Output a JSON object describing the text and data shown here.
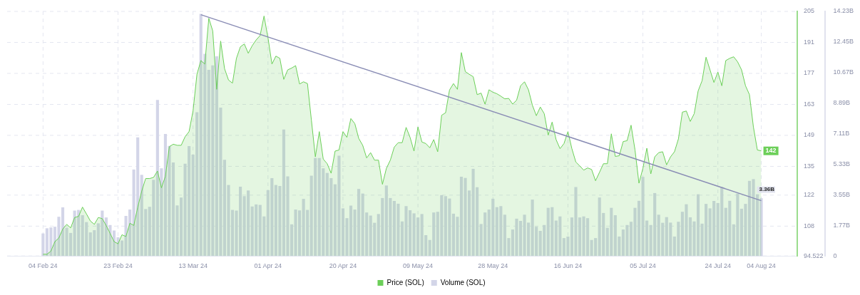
{
  "chart_data": {
    "type": "bar",
    "x": [
      "2024-02-04",
      "2024-02-05",
      "2024-02-06",
      "2024-02-07",
      "2024-02-08",
      "2024-02-09",
      "2024-02-10",
      "2024-02-11",
      "2024-02-12",
      "2024-02-13",
      "2024-02-14",
      "2024-02-15",
      "2024-02-16",
      "2024-02-17",
      "2024-02-18",
      "2024-02-19",
      "2024-02-20",
      "2024-02-21",
      "2024-02-22",
      "2024-02-23",
      "2024-02-24",
      "2024-02-25",
      "2024-02-26",
      "2024-02-27",
      "2024-02-28",
      "2024-02-29",
      "2024-03-01",
      "2024-03-02",
      "2024-03-03",
      "2024-03-04",
      "2024-03-05",
      "2024-03-06",
      "2024-03-07",
      "2024-03-08",
      "2024-03-09",
      "2024-03-10",
      "2024-03-11",
      "2024-03-12",
      "2024-03-13",
      "2024-03-14",
      "2024-03-15",
      "2024-03-16",
      "2024-03-17",
      "2024-03-18",
      "2024-03-19",
      "2024-03-20",
      "2024-03-21",
      "2024-03-22",
      "2024-03-23",
      "2024-03-24",
      "2024-03-25",
      "2024-03-26",
      "2024-03-27",
      "2024-03-28",
      "2024-03-29",
      "2024-03-30",
      "2024-03-31",
      "2024-04-01",
      "2024-04-02",
      "2024-04-03",
      "2024-04-04",
      "2024-04-05",
      "2024-04-06",
      "2024-04-07",
      "2024-04-08",
      "2024-04-09",
      "2024-04-10",
      "2024-04-11",
      "2024-04-12",
      "2024-04-13",
      "2024-04-14",
      "2024-04-15",
      "2024-04-16",
      "2024-04-17",
      "2024-04-18",
      "2024-04-19",
      "2024-04-20",
      "2024-04-21",
      "2024-04-22",
      "2024-04-23",
      "2024-04-24",
      "2024-04-25",
      "2024-04-26",
      "2024-04-27",
      "2024-04-28",
      "2024-04-29",
      "2024-04-30",
      "2024-05-01",
      "2024-05-02",
      "2024-05-03",
      "2024-05-04",
      "2024-05-05",
      "2024-05-06",
      "2024-05-07",
      "2024-05-08",
      "2024-05-09",
      "2024-05-10",
      "2024-05-11",
      "2024-05-12",
      "2024-05-13",
      "2024-05-14",
      "2024-05-15",
      "2024-05-16",
      "2024-05-17",
      "2024-05-18",
      "2024-05-19",
      "2024-05-20",
      "2024-05-21",
      "2024-05-22",
      "2024-05-23",
      "2024-05-24",
      "2024-05-25",
      "2024-05-26",
      "2024-05-27",
      "2024-05-28",
      "2024-05-29",
      "2024-05-30",
      "2024-05-31",
      "2024-06-01",
      "2024-06-02",
      "2024-06-03",
      "2024-06-04",
      "2024-06-05",
      "2024-06-06",
      "2024-06-07",
      "2024-06-08",
      "2024-06-09",
      "2024-06-10",
      "2024-06-11",
      "2024-06-12",
      "2024-06-13",
      "2024-06-14",
      "2024-06-15",
      "2024-06-16",
      "2024-06-17",
      "2024-06-18",
      "2024-06-19",
      "2024-06-20",
      "2024-06-21",
      "2024-06-22",
      "2024-06-23",
      "2024-06-24",
      "2024-06-25",
      "2024-06-26",
      "2024-06-27",
      "2024-06-28",
      "2024-06-29",
      "2024-06-30",
      "2024-07-01",
      "2024-07-02",
      "2024-07-03",
      "2024-07-04",
      "2024-07-05",
      "2024-07-06",
      "2024-07-07",
      "2024-07-08",
      "2024-07-09",
      "2024-07-10",
      "2024-07-11",
      "2024-07-12",
      "2024-07-13",
      "2024-07-14",
      "2024-07-15",
      "2024-07-16",
      "2024-07-17",
      "2024-07-18",
      "2024-07-19",
      "2024-07-20",
      "2024-07-21",
      "2024-07-22",
      "2024-07-23",
      "2024-07-24",
      "2024-07-25",
      "2024-07-26",
      "2024-07-27",
      "2024-07-28",
      "2024-07-29",
      "2024-07-30",
      "2024-07-31",
      "2024-08-01",
      "2024-08-02",
      "2024-08-03",
      "2024-08-04"
    ],
    "series": [
      {
        "type": "area",
        "name": "Price (SOL)",
        "color": "#6ccf59",
        "value_labels": [
          null,
          null,
          null,
          null,
          null,
          null,
          null,
          null,
          null,
          null,
          null,
          null,
          null,
          null,
          null,
          null,
          null,
          null,
          null,
          null,
          null,
          null,
          null,
          null,
          null,
          null,
          null,
          null,
          null,
          null,
          null,
          null,
          null,
          null,
          null,
          null,
          null,
          null,
          null,
          null,
          null,
          null,
          null,
          null,
          null,
          null,
          null,
          null,
          null,
          null,
          null,
          null,
          null,
          null,
          null,
          null,
          null,
          null,
          null,
          null,
          null,
          null,
          null,
          null,
          null,
          null,
          null,
          null,
          null,
          null,
          null,
          null,
          null,
          null,
          null,
          null,
          null,
          null,
          null,
          null,
          null,
          null,
          null,
          null,
          null,
          null,
          null,
          null,
          null,
          null,
          null,
          null,
          null,
          null,
          null,
          null,
          null,
          null,
          null,
          null,
          null,
          null,
          null,
          null,
          null,
          null,
          null,
          null,
          null,
          null,
          null,
          null,
          null,
          null,
          null,
          null,
          null,
          null,
          null,
          null,
          null,
          null,
          null,
          null,
          null,
          null,
          null,
          null,
          null,
          null,
          null,
          null,
          null,
          null,
          null,
          null,
          null,
          null,
          null,
          null,
          null,
          null,
          null,
          null,
          null,
          null,
          null,
          null,
          null,
          null,
          null,
          null,
          null,
          null,
          null,
          null,
          null,
          null,
          null,
          null,
          null,
          null,
          null,
          null,
          null,
          null,
          null,
          null,
          null,
          null,
          null,
          null,
          null,
          null,
          null,
          null,
          null,
          null,
          null,
          null,
          null,
          null,
          "142"
        ],
        "values": [
          95.3,
          95.3,
          96.7,
          101.0,
          102.6,
          106.7,
          108.8,
          107.2,
          111.9,
          112.4,
          116.6,
          113.5,
          110.3,
          108.8,
          111.9,
          111.4,
          108.3,
          104.7,
          101.0,
          100.0,
          104.1,
          103.3,
          109.3,
          108.3,
          116.6,
          123.8,
          129.5,
          129.5,
          130.0,
          132.9,
          125.3,
          130.5,
          143.9,
          145.0,
          144.5,
          144.5,
          148.4,
          150.7,
          160.0,
          176.6,
          182.8,
          181.2,
          201.9,
          196.2,
          169.8,
          191.6,
          179.1,
          174.0,
          172.6,
          183.8,
          189.0,
          190.3,
          186.1,
          189.5,
          192.1,
          194.1,
          202.9,
          193.1,
          181.2,
          184.8,
          183.8,
          174.3,
          178.6,
          179.4,
          180.5,
          172.2,
          173.2,
          172.4,
          155.9,
          139.3,
          150.7,
          138.3,
          136.2,
          131.9,
          141.9,
          142.4,
          150.7,
          148.1,
          156.6,
          154.3,
          147.6,
          144.5,
          138.8,
          141.2,
          137.8,
          137.8,
          126.9,
          134.1,
          137.8,
          143.7,
          145.7,
          145.7,
          152.6,
          148.1,
          141.9,
          152.8,
          146.0,
          145.3,
          143.4,
          147.1,
          141.6,
          158.1,
          159.2,
          169.5,
          172.4,
          169.8,
          186.4,
          177.8,
          176.6,
          175.5,
          167.4,
          168.1,
          163.1,
          169.6,
          168.5,
          167.8,
          166.7,
          165.5,
          165.7,
          163.1,
          164.9,
          171.4,
          173.2,
          169.6,
          162.6,
          157.9,
          161.8,
          158.8,
          149.1,
          155.0,
          147.1,
          143.0,
          145.3,
          150.7,
          143.0,
          137.0,
          135.2,
          133.3,
          134.3,
          133.6,
          128.5,
          132.3,
          136.2,
          136.2,
          149.7,
          139.5,
          139.8,
          146.2,
          146.6,
          153.6,
          142.4,
          127.4,
          134.1,
          143.2,
          131.6,
          139.3,
          141.2,
          141.6,
          135.7,
          139.3,
          141.6,
          147.4,
          159.5,
          160.0,
          155.3,
          158.8,
          169.1,
          173.7,
          184.3,
          178.6,
          172.9,
          177.6,
          171.4,
          182.8,
          183.8,
          184.5,
          182.2,
          178.6,
          171.4,
          167.4,
          152.8,
          142.4,
          142
        ]
      },
      {
        "name": "Volume (SOL)",
        "color": "#d3d5e8",
        "axis": "y2",
        "value_labels": [
          null,
          null,
          null,
          null,
          null,
          null,
          null,
          null,
          null,
          null,
          null,
          null,
          null,
          null,
          null,
          null,
          null,
          null,
          null,
          null,
          null,
          null,
          null,
          null,
          null,
          null,
          null,
          null,
          null,
          null,
          null,
          null,
          null,
          null,
          null,
          null,
          null,
          null,
          null,
          null,
          null,
          null,
          null,
          null,
          null,
          null,
          null,
          null,
          null,
          null,
          null,
          null,
          null,
          null,
          null,
          null,
          null,
          null,
          null,
          null,
          null,
          null,
          null,
          null,
          null,
          null,
          null,
          null,
          null,
          null,
          null,
          null,
          null,
          null,
          null,
          null,
          null,
          null,
          null,
          null,
          null,
          null,
          null,
          null,
          null,
          null,
          null,
          null,
          null,
          null,
          null,
          null,
          null,
          null,
          null,
          null,
          null,
          null,
          null,
          null,
          null,
          null,
          null,
          null,
          null,
          null,
          null,
          null,
          null,
          null,
          null,
          null,
          null,
          null,
          null,
          null,
          null,
          null,
          null,
          null,
          null,
          null,
          null,
          null,
          null,
          null,
          null,
          null,
          null,
          null,
          null,
          null,
          null,
          null,
          null,
          null,
          null,
          null,
          null,
          null,
          null,
          null,
          null,
          null,
          null,
          null,
          null,
          null,
          null,
          null,
          null,
          null,
          null,
          null,
          null,
          null,
          null,
          null,
          null,
          null,
          null,
          null,
          null,
          null,
          null,
          null,
          null,
          null,
          null,
          null,
          null,
          null,
          null,
          null,
          null,
          null,
          null,
          null,
          null,
          null,
          null,
          null,
          "3.36B"
        ],
        "values": [
          1.31,
          1.61,
          1.66,
          1.7,
          2.28,
          2.83,
          1.64,
          1.34,
          2.64,
          2.68,
          2.37,
          1.97,
          1.37,
          1.5,
          1.9,
          2.64,
          2.24,
          1.8,
          1.48,
          1.09,
          0.9,
          2.33,
          2.7,
          5.03,
          6.9,
          4.72,
          2.73,
          2.86,
          4.43,
          9.08,
          5.1,
          7.1,
          6.4,
          5.44,
          2.94,
          3.4,
          5.37,
          6.39,
          5.9,
          8.36,
          14.09,
          11.76,
          10.83,
          11.09,
          11.62,
          8.63,
          5.6,
          4.13,
          2.68,
          2.64,
          4.03,
          3.48,
          3.81,
          2.88,
          3.0,
          2.97,
          2.3,
          3.83,
          4.53,
          4.13,
          4.07,
          7.36,
          4.63,
          1.84,
          2.7,
          2.65,
          3.32,
          2.68,
          4.67,
          5.7,
          5.7,
          5.1,
          4.83,
          4.53,
          4.17,
          5.83,
          2.77,
          2.2,
          2.93,
          2.7,
          3.9,
          3.63,
          2.53,
          2.35,
          1.93,
          2.44,
          3.37,
          4.1,
          3.37,
          3.2,
          3.04,
          2.01,
          2.9,
          2.66,
          2.48,
          2.24,
          2.44,
          1.21,
          0.93,
          2.53,
          2.57,
          3.54,
          3.48,
          3.34,
          2.46,
          2.28,
          4.61,
          4.54,
          3.81,
          5.07,
          4.0,
          1.86,
          2.53,
          2.7,
          3.33,
          2.84,
          2.9,
          2.4,
          1.04,
          1.54,
          2.17,
          2.04,
          2.4,
          1.94,
          3.28,
          1.7,
          1.46,
          1.8,
          2.8,
          2.84,
          2.06,
          2.3,
          1.04,
          1.13,
          2.24,
          4.01,
          2.24,
          2.3,
          2.2,
          0.93,
          1.04,
          3.4,
          2.5,
          1.64,
          2.8,
          2.37,
          1.13,
          1.54,
          1.8,
          1.99,
          2.8,
          3.21,
          4.6,
          2.06,
          1.8,
          3.66,
          2.4,
          1.93,
          2.26,
          1.94,
          1.13,
          1.99,
          2.57,
          3.01,
          2.25,
          2.01,
          3.59,
          1.88,
          3.03,
          2.77,
          3.2,
          3.08,
          4.01,
          2.8,
          3.21,
          1.84,
          3.63,
          2.75,
          3.03,
          4.37,
          4.47,
          3.59,
          3.36
        ]
      },
      {
        "type": "line",
        "color": "#8a8db5",
        "line_style": "solid",
        "x": [
          "2024-03-15",
          "2024-08-04"
        ],
        "values": [
          203.5,
          119.5
        ]
      }
    ],
    "xlim": [
      "2024-02-04",
      "2024-08-04"
    ],
    "xticks": [
      {
        "value": "2024-02-04",
        "label": "04 Feb 24"
      },
      {
        "value": "2024-02-23",
        "label": "23 Feb 24"
      },
      {
        "value": "2024-03-13",
        "label": "13 Mar 24"
      },
      {
        "value": "2024-04-01",
        "label": "01 Apr 24"
      },
      {
        "value": "2024-04-20",
        "label": "20 Apr 24"
      },
      {
        "value": "2024-05-09",
        "label": "09 May 24"
      },
      {
        "value": "2024-05-28",
        "label": "28 May 24"
      },
      {
        "value": "2024-06-16",
        "label": "16 Jun 24"
      },
      {
        "value": "2024-07-05",
        "label": "05 Jul 24"
      },
      {
        "value": "2024-07-24",
        "label": "24 Jul 24"
      },
      {
        "value": "2024-08-04",
        "label": "04 Aug 24"
      }
    ],
    "ylim": [
      94.522,
      205
    ],
    "yticks": [
      94.522,
      108,
      122,
      135,
      149,
      163,
      177,
      191,
      205
    ],
    "y2lim": [
      0,
      14.23
    ],
    "y2ticks": [
      0,
      {
        "value": 1.77,
        "label": "1.77B"
      },
      {
        "value": 3.55,
        "label": "3.55B"
      },
      {
        "value": 5.33,
        "label": "5.33B"
      },
      {
        "value": 7.11,
        "label": "7.11B"
      },
      {
        "value": 8.89,
        "label": "8.89B"
      },
      {
        "value": 10.67,
        "label": "10.67B"
      },
      {
        "value": 12.45,
        "label": "12.45B"
      },
      {
        "value": 14.23,
        "label": "14.23B"
      }
    ],
    "grid": true,
    "legend": "bottom",
    "marker": "none"
  }
}
